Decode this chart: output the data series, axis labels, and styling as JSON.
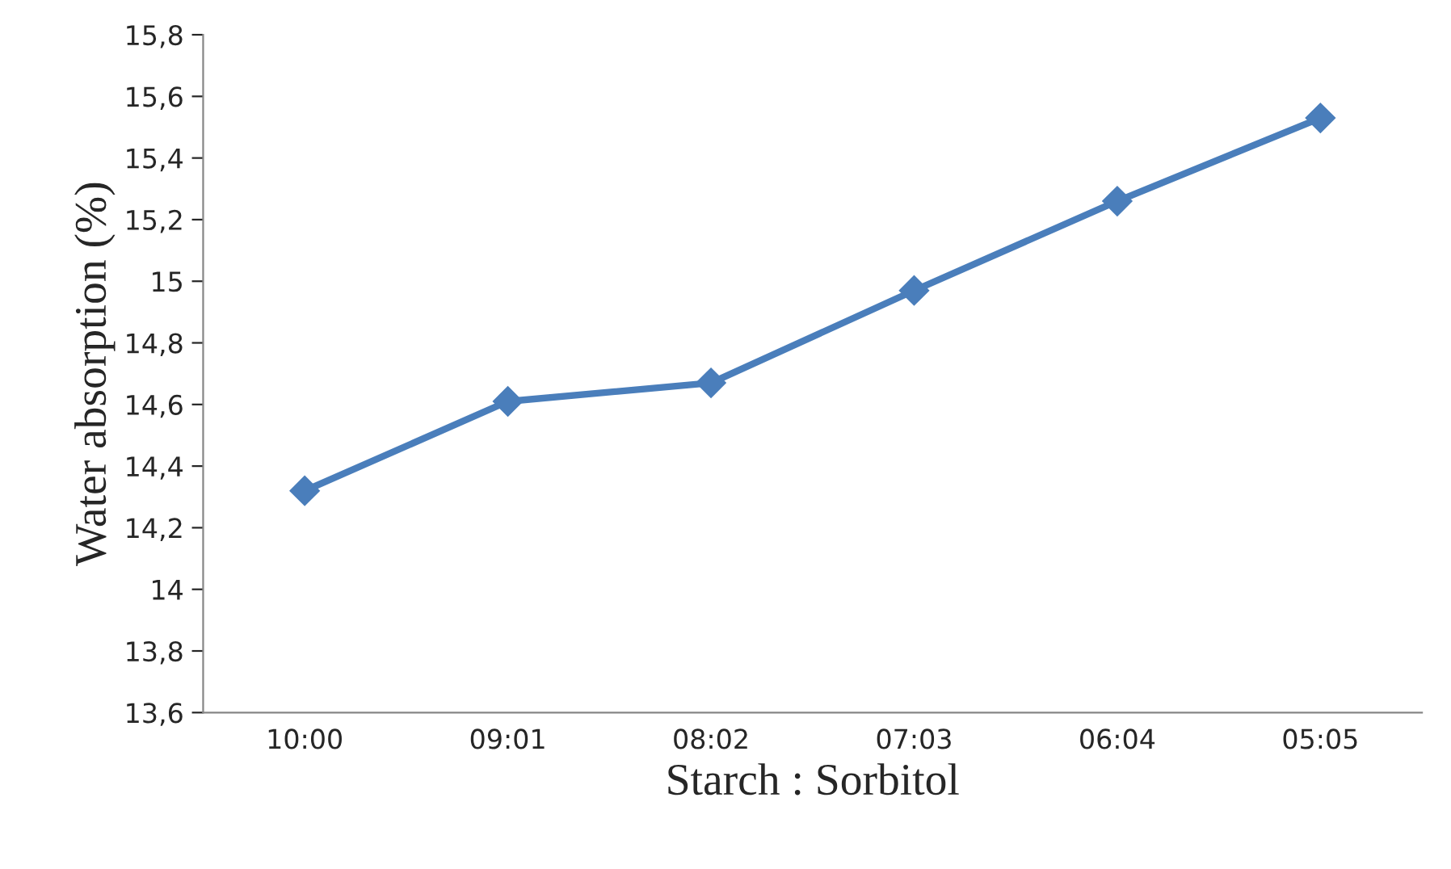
{
  "chart_data": {
    "type": "line",
    "xlabel": "Starch : Sorbitol",
    "ylabel": "Water absorption (%)",
    "categories": [
      "10:00",
      "09:01",
      "08:02",
      "07:03",
      "06:04",
      "05:05"
    ],
    "series": [
      {
        "color": "#4a7ebb",
        "values": [
          14.32,
          14.61,
          14.67,
          14.97,
          15.26,
          15.53
        ]
      }
    ],
    "ylim": [
      13.6,
      15.8
    ],
    "yticks": [
      {
        "value": 13.6,
        "label": "13,6"
      },
      {
        "value": 13.8,
        "label": "13,8"
      },
      14,
      {
        "value": 14.2,
        "label": "14,2"
      },
      {
        "value": 14.4,
        "label": "14,4"
      },
      {
        "value": 14.6,
        "label": "14,6"
      },
      {
        "value": 14.8,
        "label": "14,8"
      },
      15,
      {
        "value": 15.2,
        "label": "15,2"
      },
      {
        "value": 15.4,
        "label": "15,4"
      },
      {
        "value": 15.6,
        "label": "15,6"
      },
      {
        "value": 15.8,
        "label": "15,8"
      }
    ],
    "marker": "diamond",
    "line_style": "solid"
  }
}
